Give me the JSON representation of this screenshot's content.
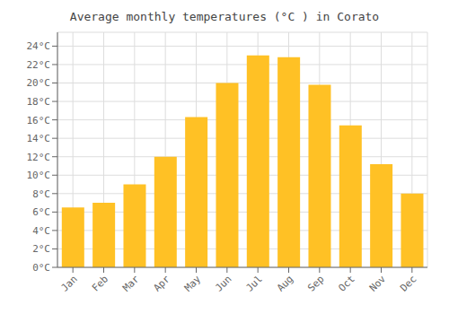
{
  "chart_data": {
    "type": "bar",
    "title": "Average monthly temperatures (°C ) in Corato",
    "categories": [
      "Jan",
      "Feb",
      "Mar",
      "Apr",
      "May",
      "Jun",
      "Jul",
      "Aug",
      "Sep",
      "Oct",
      "Nov",
      "Dec"
    ],
    "values": [
      6.5,
      7.0,
      9.0,
      12.0,
      16.3,
      20.0,
      23.0,
      22.8,
      19.8,
      15.4,
      11.2,
      8.0
    ],
    "color": "#FFC125",
    "ylim": [
      0,
      25.5
    ],
    "yticks": [
      {
        "value": 0,
        "label": "0°C"
      },
      {
        "value": 2,
        "label": "2°C"
      },
      {
        "value": 4,
        "label": "4°C"
      },
      {
        "value": 6,
        "label": "6°C"
      },
      {
        "value": 8,
        "label": "8°C"
      },
      {
        "value": 10,
        "label": "10°C"
      },
      {
        "value": 12,
        "label": "12°C"
      },
      {
        "value": 14,
        "label": "14°C"
      },
      {
        "value": 16,
        "label": "16°C"
      },
      {
        "value": 18,
        "label": "18°C"
      },
      {
        "value": 20,
        "label": "20°C"
      },
      {
        "value": 22,
        "label": "22°C"
      },
      {
        "value": 24,
        "label": "24°C"
      }
    ],
    "grid": true
  }
}
